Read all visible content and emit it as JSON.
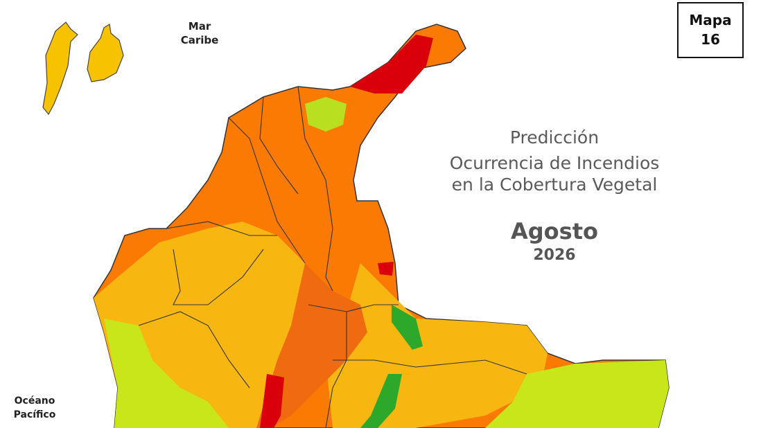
{
  "badge": {
    "lines": [
      "Mapa",
      "16"
    ]
  },
  "labels": {
    "sea": [
      "Mar",
      "Caribe"
    ],
    "ocean": [
      "Océano",
      "Pacífico"
    ]
  },
  "title": {
    "lines": [
      "Predicción",
      "Ocurrencia de Incendios",
      "en la Cobertura Vegetal"
    ],
    "month": "Agosto",
    "year": "2026"
  }
}
